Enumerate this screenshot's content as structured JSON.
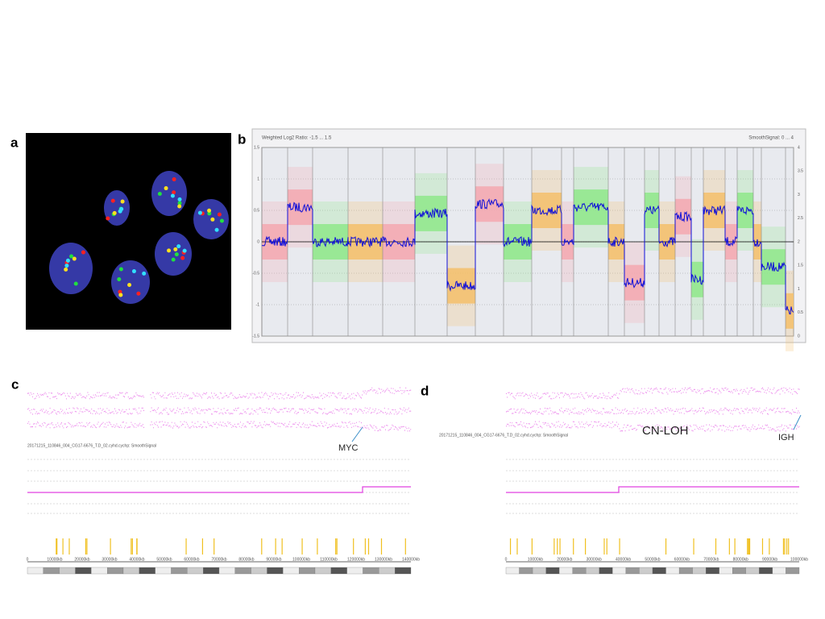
{
  "panels": {
    "a": {
      "label": "a"
    },
    "b": {
      "label": "b",
      "left_title": "Weighted Log2 Ratio: -1.5 ... 1.5",
      "right_title": "SmoothSignal: 0 ... 4",
      "left_ticks": [
        "1.5",
        "1",
        "0.5",
        "0",
        "-0.5",
        "-1",
        "-1.5"
      ],
      "right_ticks": [
        "4",
        "3.5",
        "3",
        "2.5",
        "2",
        "1.5",
        "1",
        "0.5",
        "0"
      ]
    },
    "c": {
      "label": "c",
      "file_label": "20171215_110846_004_CG17-6676_T.D_02.cyhd.cychp: SmoothSignal",
      "annotation": "MYC",
      "x_labels": [
        "0",
        "10000kb",
        "20000kb",
        "30000kb",
        "40000kb",
        "50000kb",
        "60000kb",
        "70000kb",
        "80000kb",
        "90000kb",
        "100000kb",
        "110000kb",
        "120000kb",
        "130000kb",
        "140000kb"
      ]
    },
    "d": {
      "label": "d",
      "file_label": "20171215_110846_004_CG17-6676_T.D_02.cyhd.cychp: SmoothSignal",
      "annotation_1": "CN-LOH",
      "annotation_2": "IGH",
      "x_labels": [
        "0",
        "10000kb",
        "20000kb",
        "30000kb",
        "40000kb",
        "50000kb",
        "60000kb",
        "70000kb",
        "80000kb",
        "90000kb",
        "100000kb"
      ]
    }
  }
}
